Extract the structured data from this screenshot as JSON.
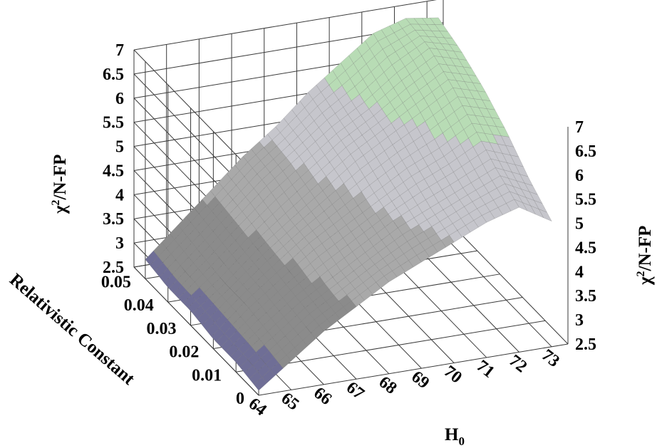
{
  "chart_data": {
    "type": "surface",
    "xlabel": "H",
    "xlabel_sub": "0",
    "ylabel": "Relativistic Constant",
    "zlabel_left": "χ",
    "zlabel_left_sup": "2",
    "zlabel_left_rest": "/N-FP",
    "zlabel_right": "χ",
    "zlabel_right_sup": "2",
    "zlabel_right_rest": "/N-FP",
    "x_ticks": [
      "64",
      "65",
      "66",
      "67",
      "68",
      "69",
      "70",
      "71",
      "72",
      "73"
    ],
    "y_ticks": [
      "0",
      "0.01",
      "0.02",
      "0.03",
      "0.04",
      "0.05"
    ],
    "z_ticks": [
      "2.5",
      "3",
      "3.5",
      "4",
      "4.5",
      "5",
      "5.5",
      "6",
      "6.5",
      "7"
    ],
    "xlim": [
      64,
      73.5
    ],
    "ylim": [
      0,
      0.055
    ],
    "zlim": [
      2.5,
      7
    ],
    "color_bands": [
      {
        "range": [
          2.5,
          3.0
        ],
        "color": "#6f6e96"
      },
      {
        "range": [
          3.0,
          4.0
        ],
        "color": "#8b8b8b"
      },
      {
        "range": [
          4.0,
          5.0
        ],
        "color": "#a9a9a9"
      },
      {
        "range": [
          5.0,
          6.0
        ],
        "color": "#c6c6cc"
      },
      {
        "range": [
          6.0,
          7.0
        ],
        "color": "#b8dcb5"
      }
    ],
    "grid": true,
    "series": [
      {
        "y": 0.0,
        "z": [
          2.6,
          3.1,
          3.6,
          4.0,
          4.4,
          4.7,
          5.0,
          5.3,
          5.5,
          5.1
        ]
      },
      {
        "y": 0.01,
        "z": [
          2.7,
          3.2,
          3.7,
          4.1,
          4.5,
          4.9,
          5.2,
          5.5,
          5.8,
          5.5
        ]
      },
      {
        "y": 0.02,
        "z": [
          2.7,
          3.3,
          3.8,
          4.3,
          4.7,
          5.1,
          5.5,
          5.8,
          6.2,
          6.0
        ]
      },
      {
        "y": 0.03,
        "z": [
          2.8,
          3.3,
          3.9,
          4.4,
          4.9,
          5.4,
          5.8,
          6.2,
          6.6,
          6.4
        ]
      },
      {
        "y": 0.04,
        "z": [
          2.8,
          3.4,
          4.0,
          4.6,
          5.1,
          5.6,
          6.0,
          6.5,
          6.9,
          6.7
        ]
      },
      {
        "y": 0.05,
        "z": [
          2.9,
          3.5,
          4.1,
          4.7,
          5.2,
          5.8,
          6.3,
          6.8,
          7.0,
          6.9
        ]
      }
    ]
  }
}
